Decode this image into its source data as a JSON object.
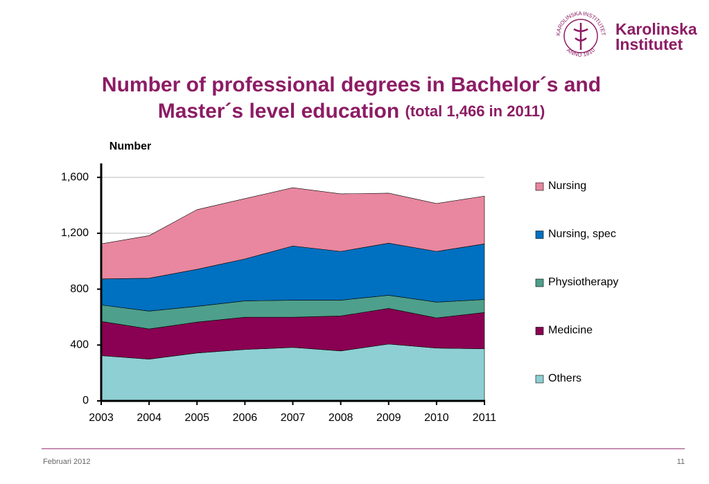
{
  "logo": {
    "seal_top": "KAROLINSKA INSTITUTET",
    "seal_bottom": "ANNO 1810",
    "name_line1": "Karolinska",
    "name_line2": "Institutet"
  },
  "chart_data": {
    "type": "stacked_area",
    "title": "Number of professional degrees in Bachelor´s and Master´s level education",
    "subtitle": "(total 1,466 in 2011)",
    "y_label": "Number",
    "categories": [
      "2003",
      "2004",
      "2005",
      "2006",
      "2007",
      "2008",
      "2009",
      "2010",
      "2011"
    ],
    "series": [
      {
        "name": "Others",
        "color": "#8ecfd3",
        "values": [
          324,
          299,
          343,
          368,
          383,
          358,
          407,
          378,
          373
        ]
      },
      {
        "name": "Medicine",
        "color": "#8a0052",
        "values": [
          245,
          216,
          221,
          231,
          216,
          250,
          255,
          216,
          260
        ]
      },
      {
        "name": "Physiotherapy",
        "color": "#4e9f8b",
        "values": [
          118,
          128,
          113,
          117,
          122,
          113,
          94,
          113,
          93
        ]
      },
      {
        "name": "Nursing, spec",
        "color": "#0070c0",
        "values": [
          186,
          235,
          265,
          300,
          388,
          349,
          373,
          363,
          398
        ]
      },
      {
        "name": "Nursing",
        "color": "#e8879f",
        "values": [
          251,
          305,
          427,
          432,
          417,
          412,
          358,
          343,
          342
        ]
      }
    ],
    "ylim": [
      0,
      1700
    ],
    "yticks": [
      0,
      400,
      800,
      {
        "value": 1200,
        "label": "1,200"
      },
      {
        "value": 1600,
        "label": "1,600"
      }
    ],
    "grid": true,
    "legend": "right"
  },
  "footer": {
    "date": "Februari 2012",
    "page": "11"
  }
}
